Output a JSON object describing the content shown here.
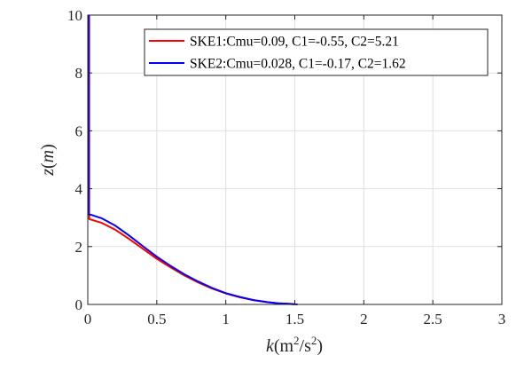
{
  "chart_data": {
    "type": "line",
    "title": "",
    "xlabel": {
      "var": "k",
      "open": "(m",
      "sup1": "2",
      "mid": "/s",
      "sup2": "2",
      "close": ")"
    },
    "ylabel": {
      "var": "z",
      "open": "(",
      "unit": "m",
      "close": ")"
    },
    "xlim": [
      0,
      3
    ],
    "ylim": [
      0,
      10
    ],
    "xticks": [
      "0",
      "0.5",
      "1",
      "1.5",
      "2",
      "2.5",
      "3"
    ],
    "yticks": [
      "0",
      "2",
      "4",
      "6",
      "8",
      "10"
    ],
    "xtick_values": [
      0,
      0.5,
      1,
      1.5,
      2,
      2.5,
      3
    ],
    "ytick_values": [
      0,
      2,
      4,
      6,
      8,
      10
    ],
    "grid": true,
    "legend_position": "top-right",
    "series": [
      {
        "name": "SKE1:Cmu=0.09, C1=-0.55, C2=5.21",
        "color": "#ff0000",
        "x": [
          1.5,
          1.44,
          1.38,
          1.3,
          1.2,
          1.1,
          1.0,
          0.9,
          0.8,
          0.7,
          0.6,
          0.5,
          0.4,
          0.3,
          0.2,
          0.1,
          0.03,
          0.01,
          0.01,
          0.01
        ],
        "y": [
          0.0,
          0.02,
          0.04,
          0.08,
          0.15,
          0.25,
          0.38,
          0.55,
          0.76,
          1.0,
          1.28,
          1.58,
          1.92,
          2.26,
          2.58,
          2.82,
          2.92,
          2.95,
          6.0,
          10.0
        ]
      },
      {
        "name": "SKE2:Cmu=0.028, C1=-0.17, C2=1.62",
        "color": "#0000ff",
        "x": [
          1.52,
          1.46,
          1.38,
          1.3,
          1.2,
          1.1,
          1.0,
          0.9,
          0.8,
          0.7,
          0.6,
          0.5,
          0.4,
          0.3,
          0.2,
          0.1,
          0.03,
          0.005,
          0.005,
          0.005
        ],
        "y": [
          0.0,
          0.02,
          0.04,
          0.08,
          0.15,
          0.26,
          0.39,
          0.57,
          0.79,
          1.04,
          1.33,
          1.65,
          2.01,
          2.38,
          2.72,
          2.98,
          3.09,
          3.12,
          6.0,
          10.0
        ]
      }
    ]
  }
}
